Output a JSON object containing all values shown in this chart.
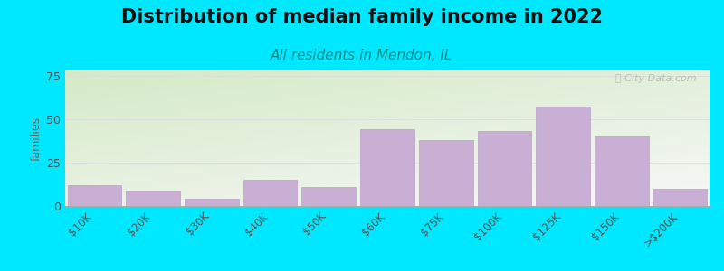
{
  "title": "Distribution of median family income in 2022",
  "subtitle": "All residents in Mendon, IL",
  "categories": [
    "$10K",
    "$20K",
    "$30K",
    "$40K",
    "$50K",
    "$60K",
    "$75K",
    "$100K",
    "$125K",
    "$150K",
    ">$200K"
  ],
  "values": [
    12,
    9,
    4,
    15,
    11,
    44,
    38,
    43,
    57,
    40,
    10
  ],
  "bar_color": "#c9afd4",
  "bar_edge_color": "#b8a0c8",
  "ylabel": "families",
  "ylim": [
    0,
    78
  ],
  "yticks": [
    0,
    25,
    50,
    75
  ],
  "background_outer": "#00e8ff",
  "grad_color_topleft": "#d4eac8",
  "grad_color_bottomright": "#f8f8f8",
  "title_fontsize": 15,
  "subtitle_fontsize": 11,
  "subtitle_color": "#008b8b",
  "watermark_text": "ⓘ City-Data.com",
  "grid_color": "#dddddd",
  "tick_color": "#555555",
  "ylabel_color": "#666666"
}
